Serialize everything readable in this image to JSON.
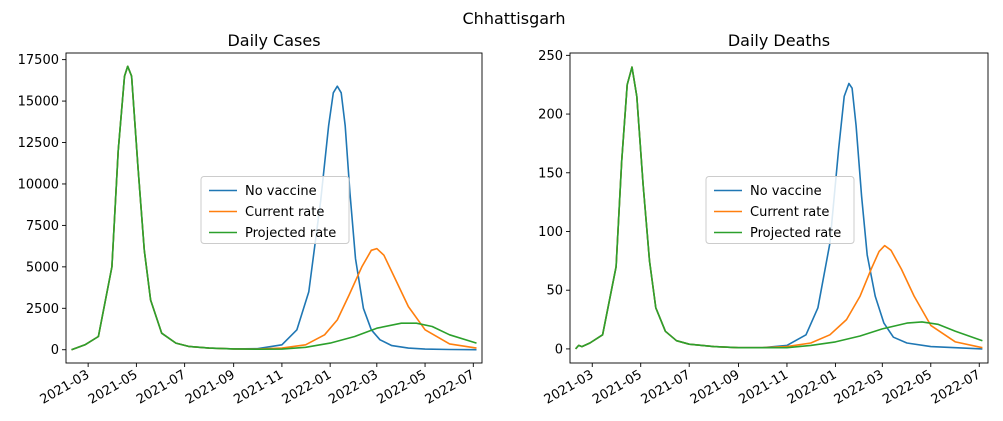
{
  "suptitle": "Chhattisgarh",
  "chart_data": [
    {
      "type": "line",
      "title": "Daily Cases",
      "xlabel": "",
      "ylabel": "",
      "xlim": [
        "2021-02-01",
        "2022-07-12"
      ],
      "ylim": [
        -800,
        17900
      ],
      "xticks": [
        "2021-03",
        "2021-05",
        "2021-07",
        "2021-09",
        "2021-11",
        "2022-01",
        "2022-03",
        "2022-05",
        "2022-07"
      ],
      "yticks": [
        0,
        2500,
        5000,
        7500,
        10000,
        12500,
        15000,
        17500
      ],
      "legend": {
        "position": "center"
      },
      "series": [
        {
          "name": "No vaccine",
          "color": "#1f77b4",
          "x": [
            "2021-02-08",
            "2021-02-25",
            "2021-03-14",
            "2021-03-31",
            "2021-04-08",
            "2021-04-16",
            "2021-04-20",
            "2021-04-25",
            "2021-05-03",
            "2021-05-11",
            "2021-05-19",
            "2021-06-02",
            "2021-06-20",
            "2021-07-06",
            "2021-08-01",
            "2021-09-01",
            "2021-10-01",
            "2021-11-01",
            "2021-11-20",
            "2021-12-05",
            "2021-12-20",
            "2021-12-30",
            "2022-01-05",
            "2022-01-10",
            "2022-01-15",
            "2022-01-20",
            "2022-01-26",
            "2022-02-02",
            "2022-02-12",
            "2022-02-22",
            "2022-03-05",
            "2022-03-20",
            "2022-04-10",
            "2022-05-01",
            "2022-06-01",
            "2022-07-05"
          ],
          "y": [
            0,
            300,
            800,
            5000,
            12000,
            16500,
            17100,
            16500,
            11000,
            6000,
            3000,
            1000,
            400,
            200,
            100,
            50,
            60,
            300,
            1200,
            3500,
            9000,
            13500,
            15500,
            15900,
            15500,
            13500,
            9500,
            5500,
            2500,
            1200,
            600,
            250,
            100,
            40,
            15,
            5
          ]
        },
        {
          "name": "Current rate",
          "color": "#ff7f0e",
          "x": [
            "2021-02-08",
            "2021-02-25",
            "2021-03-14",
            "2021-03-31",
            "2021-04-08",
            "2021-04-16",
            "2021-04-20",
            "2021-04-25",
            "2021-05-03",
            "2021-05-11",
            "2021-05-19",
            "2021-06-02",
            "2021-06-20",
            "2021-07-06",
            "2021-08-01",
            "2021-09-01",
            "2021-10-01",
            "2021-11-01",
            "2021-12-01",
            "2021-12-25",
            "2022-01-10",
            "2022-01-25",
            "2022-02-10",
            "2022-02-22",
            "2022-03-01",
            "2022-03-10",
            "2022-03-25",
            "2022-04-10",
            "2022-05-01",
            "2022-06-01",
            "2022-07-05"
          ],
          "y": [
            0,
            300,
            800,
            5000,
            12000,
            16500,
            17100,
            16500,
            11000,
            6000,
            3000,
            1000,
            400,
            200,
            100,
            50,
            40,
            100,
            300,
            900,
            1800,
            3300,
            5000,
            6000,
            6100,
            5700,
            4200,
            2600,
            1200,
            350,
            100
          ]
        },
        {
          "name": "Projected rate",
          "color": "#2ca02c",
          "x": [
            "2021-02-08",
            "2021-02-25",
            "2021-03-14",
            "2021-03-31",
            "2021-04-08",
            "2021-04-16",
            "2021-04-20",
            "2021-04-25",
            "2021-05-03",
            "2021-05-11",
            "2021-05-19",
            "2021-06-02",
            "2021-06-20",
            "2021-07-06",
            "2021-08-01",
            "2021-09-01",
            "2021-10-01",
            "2021-11-01",
            "2021-12-01",
            "2022-01-01",
            "2022-02-01",
            "2022-03-01",
            "2022-04-01",
            "2022-04-20",
            "2022-05-10",
            "2022-06-01",
            "2022-07-05"
          ],
          "y": [
            0,
            300,
            800,
            5000,
            12000,
            16500,
            17100,
            16500,
            11000,
            6000,
            3000,
            1000,
            400,
            200,
            100,
            50,
            30,
            40,
            150,
            400,
            800,
            1300,
            1600,
            1600,
            1400,
            900,
            400
          ]
        }
      ]
    },
    {
      "type": "line",
      "title": "Daily Deaths",
      "xlabel": "",
      "ylabel": "",
      "xlim": [
        "2021-02-01",
        "2022-07-12"
      ],
      "ylim": [
        -12,
        252
      ],
      "xticks": [
        "2021-03",
        "2021-05",
        "2021-07",
        "2021-09",
        "2021-11",
        "2022-01",
        "2022-03",
        "2022-05",
        "2022-07"
      ],
      "yticks": [
        0,
        50,
        100,
        150,
        200,
        250
      ],
      "legend": {
        "position": "center"
      },
      "series": [
        {
          "name": "No vaccine",
          "color": "#1f77b4",
          "x": [
            "2021-02-08",
            "2021-02-12",
            "2021-02-16",
            "2021-02-26",
            "2021-03-14",
            "2021-03-31",
            "2021-04-07",
            "2021-04-14",
            "2021-04-20",
            "2021-04-26",
            "2021-05-04",
            "2021-05-12",
            "2021-05-20",
            "2021-06-01",
            "2021-06-15",
            "2021-07-01",
            "2021-08-01",
            "2021-09-01",
            "2021-10-01",
            "2021-11-01",
            "2021-11-25",
            "2021-12-10",
            "2021-12-25",
            "2022-01-05",
            "2022-01-12",
            "2022-01-18",
            "2022-01-22",
            "2022-01-27",
            "2022-02-03",
            "2022-02-10",
            "2022-02-20",
            "2022-03-03",
            "2022-03-15",
            "2022-04-01",
            "2022-05-01",
            "2022-06-01",
            "2022-07-05"
          ],
          "y": [
            0,
            3,
            2,
            5,
            12,
            70,
            160,
            225,
            240,
            215,
            140,
            75,
            35,
            15,
            7,
            4,
            2,
            1,
            1,
            3,
            12,
            35,
            90,
            170,
            215,
            226,
            222,
            190,
            130,
            80,
            45,
            22,
            10,
            5,
            2,
            1,
            0
          ]
        },
        {
          "name": "Current rate",
          "color": "#ff7f0e",
          "x": [
            "2021-02-08",
            "2021-02-12",
            "2021-02-16",
            "2021-02-26",
            "2021-03-14",
            "2021-03-31",
            "2021-04-07",
            "2021-04-14",
            "2021-04-20",
            "2021-04-26",
            "2021-05-04",
            "2021-05-12",
            "2021-05-20",
            "2021-06-01",
            "2021-06-15",
            "2021-07-01",
            "2021-08-01",
            "2021-09-01",
            "2021-10-01",
            "2021-11-01",
            "2021-12-01",
            "2021-12-25",
            "2022-01-15",
            "2022-02-01",
            "2022-02-15",
            "2022-02-25",
            "2022-03-04",
            "2022-03-12",
            "2022-03-25",
            "2022-04-10",
            "2022-05-01",
            "2022-06-01",
            "2022-07-05"
          ],
          "y": [
            0,
            3,
            2,
            5,
            12,
            70,
            160,
            225,
            240,
            215,
            140,
            75,
            35,
            15,
            7,
            4,
            2,
            1,
            1,
            2,
            5,
            12,
            25,
            45,
            68,
            83,
            88,
            84,
            68,
            45,
            20,
            6,
            1
          ]
        },
        {
          "name": "Projected rate",
          "color": "#2ca02c",
          "x": [
            "2021-02-08",
            "2021-02-12",
            "2021-02-16",
            "2021-02-26",
            "2021-03-14",
            "2021-03-31",
            "2021-04-07",
            "2021-04-14",
            "2021-04-20",
            "2021-04-26",
            "2021-05-04",
            "2021-05-12",
            "2021-05-20",
            "2021-06-01",
            "2021-06-15",
            "2021-07-01",
            "2021-08-01",
            "2021-09-01",
            "2021-10-01",
            "2021-11-01",
            "2021-12-01",
            "2022-01-01",
            "2022-02-01",
            "2022-03-01",
            "2022-04-01",
            "2022-04-20",
            "2022-05-10",
            "2022-06-01",
            "2022-07-05"
          ],
          "y": [
            0,
            3,
            2,
            5,
            12,
            70,
            160,
            225,
            240,
            215,
            140,
            75,
            35,
            15,
            7,
            4,
            2,
            1,
            1,
            1,
            3,
            6,
            11,
            17,
            22,
            23,
            21,
            15,
            7
          ]
        }
      ]
    }
  ]
}
